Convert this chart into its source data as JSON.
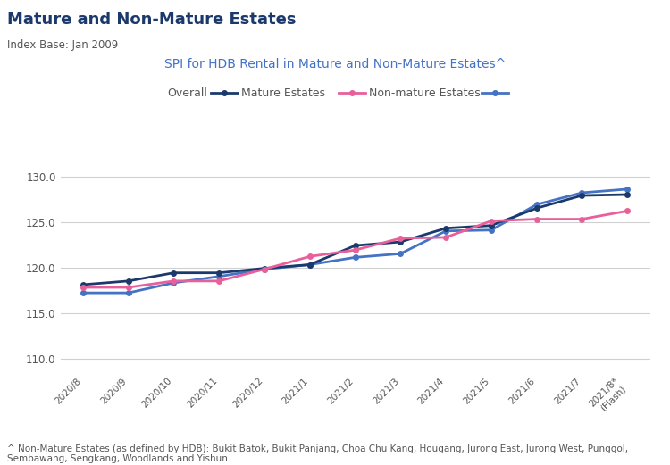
{
  "title": "Mature and Non-Mature Estates",
  "subtitle_index": "Index Base: Jan 2009",
  "subtitle_chart": "SPI for HDB Rental in Mature and Non-Mature Estates^",
  "footnote": "^ Non-Mature Estates (as defined by HDB): Bukit Batok, Bukit Panjang, Choa Chu Kang, Hougang, Jurong East, Jurong West, Punggol,\nSembawang, Sengkang, Woodlands and Yishun.",
  "x_labels": [
    "2020/8",
    "2020/9",
    "2020/10",
    "2020/11",
    "2020/12",
    "2021/1",
    "2021/2",
    "2021/3",
    "2021/4",
    "2021/5",
    "2021/6",
    "2021/7",
    "2021/8*\n(Flash)"
  ],
  "mature_estates": [
    118.1,
    118.5,
    119.4,
    119.4,
    119.9,
    120.3,
    122.4,
    122.8,
    124.3,
    124.6,
    126.5,
    127.9,
    128.0
  ],
  "non_mature_estates": [
    117.8,
    117.8,
    118.5,
    118.5,
    119.8,
    121.2,
    121.9,
    123.2,
    123.3,
    125.1,
    125.3,
    125.3,
    126.2
  ],
  "overall": [
    117.2,
    117.2,
    118.3,
    119.0,
    119.8,
    120.3,
    121.1,
    121.5,
    124.0,
    124.1,
    126.9,
    128.2,
    128.6
  ],
  "color_mature": "#1b3a6b",
  "color_non_mature": "#e8609a",
  "color_overall": "#4472c4",
  "ylim_min": 108.5,
  "ylim_max": 131.5,
  "yticks": [
    110.0,
    115.0,
    120.0,
    125.0,
    130.0
  ],
  "bg_color": "#ffffff",
  "grid_color": "#d0d0d0",
  "title_color": "#1b3a6b",
  "subtitle_color": "#4472c4",
  "text_color": "#555555"
}
